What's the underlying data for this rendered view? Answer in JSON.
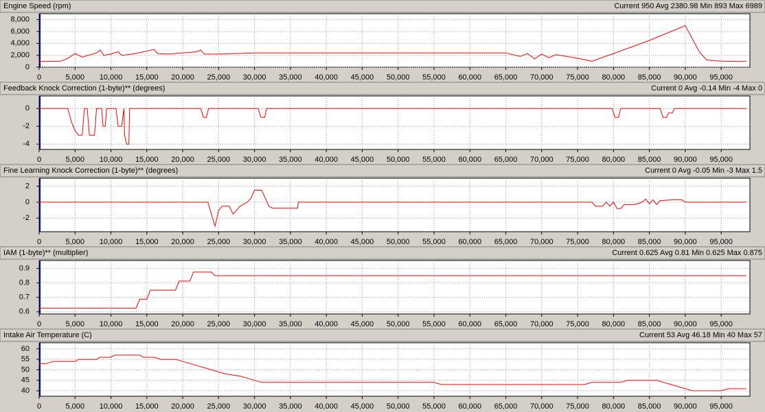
{
  "chart_data": [
    {
      "type": "line",
      "title": "Engine Speed (rpm)",
      "stats": "Current 950 Avg 2380.98 Min 893 Max 6989",
      "color": "#ff0000",
      "grid": true,
      "x": [
        0,
        3000,
        4000,
        5000,
        6000,
        8000,
        8500,
        9000,
        10000,
        11000,
        11500,
        13000,
        15000,
        16000,
        16500,
        18000,
        20000,
        22000,
        22500,
        23000,
        25000,
        30000,
        65000,
        67000,
        68000,
        69000,
        70000,
        71000,
        72000,
        75000,
        77000,
        80000,
        85000,
        90000,
        92000,
        93000,
        95000,
        98000,
        98500
      ],
      "values": [
        950,
        1000,
        1500,
        2300,
        1700,
        2400,
        2900,
        2000,
        2200,
        2600,
        2000,
        2200,
        2700,
        3000,
        2300,
        2200,
        2400,
        2600,
        2900,
        2200,
        2200,
        2400,
        2400,
        1800,
        2300,
        1400,
        2200,
        1600,
        2100,
        1500,
        1000,
        2300,
        4500,
        6989,
        2500,
        1200,
        1000,
        950,
        1000
      ],
      "xlim": [
        0,
        99000
      ],
      "ylim": [
        0,
        9000
      ],
      "yticks": [
        0,
        {
          "value": 2000,
          "label": "2,000"
        },
        {
          "value": 4000,
          "label": "4,000"
        },
        {
          "value": 6000,
          "label": "6,000"
        },
        {
          "value": 8000,
          "label": "8,000"
        }
      ],
      "xticks": [
        0,
        {
          "value": 5000,
          "label": "5,000"
        },
        {
          "value": 10000,
          "label": "10,000"
        },
        {
          "value": 15000,
          "label": "15,000"
        },
        {
          "value": 20000,
          "label": "20,000"
        },
        {
          "value": 25000,
          "label": "25,000"
        },
        {
          "value": 30000,
          "label": "30,000"
        },
        {
          "value": 35000,
          "label": "35,000"
        },
        {
          "value": 40000,
          "label": "40,000"
        },
        {
          "value": 45000,
          "label": "45,000"
        },
        {
          "value": 50000,
          "label": "50,000"
        },
        {
          "value": 55000,
          "label": "55,000"
        },
        {
          "value": 60000,
          "label": "60,000"
        },
        {
          "value": 65000,
          "label": "65,000"
        },
        {
          "value": 70000,
          "label": "70,000"
        },
        {
          "value": 75000,
          "label": "75,000"
        },
        {
          "value": 80000,
          "label": "80,000"
        },
        {
          "value": 85000,
          "label": "85,000"
        },
        {
          "value": 90000,
          "label": "90,000"
        },
        {
          "value": 95000,
          "label": "95,000"
        }
      ]
    },
    {
      "type": "line",
      "title": "Feedback Knock Correction (1-byte)** (degrees)",
      "stats": "Current 0 Avg -0.14 Min -4 Max 0",
      "color": "#ff0000",
      "grid": true,
      "x": [
        0,
        4000,
        4500,
        5000,
        5500,
        6000,
        6300,
        6700,
        7000,
        7700,
        8000,
        8700,
        8900,
        9200,
        9400,
        10700,
        11000,
        11500,
        11800,
        11900,
        12200,
        12500,
        12600,
        22500,
        22900,
        23300,
        23600,
        30500,
        30900,
        31400,
        31700,
        79800,
        80200,
        80700,
        81000,
        86500,
        86900,
        87400,
        87700,
        88200,
        88500,
        98500
      ],
      "values": [
        0,
        0,
        -1.5,
        -2.5,
        -3,
        -3,
        0,
        0,
        -3,
        -3,
        0,
        0,
        -2,
        -2,
        0,
        0,
        -2,
        -2,
        0,
        -3,
        -4,
        -4,
        0,
        0,
        -1,
        -1,
        0,
        0,
        -1,
        -1,
        0,
        0,
        -1,
        -1,
        0,
        0,
        -1,
        -1,
        -0.5,
        -0.5,
        0,
        0
      ],
      "xlim": [
        0,
        99000
      ],
      "ylim": [
        -4.6,
        1.4
      ],
      "yticks": [
        -4,
        -2,
        0
      ],
      "xticks": [
        0,
        {
          "value": 5000,
          "label": "5,000"
        },
        {
          "value": 10000,
          "label": "10,000"
        },
        {
          "value": 15000,
          "label": "15,000"
        },
        {
          "value": 20000,
          "label": "20,000"
        },
        {
          "value": 25000,
          "label": "25,000"
        },
        {
          "value": 30000,
          "label": "30,000"
        },
        {
          "value": 35000,
          "label": "35,000"
        },
        {
          "value": 40000,
          "label": "40,000"
        },
        {
          "value": 45000,
          "label": "45,000"
        },
        {
          "value": 50000,
          "label": "50,000"
        },
        {
          "value": 55000,
          "label": "55,000"
        },
        {
          "value": 60000,
          "label": "60,000"
        },
        {
          "value": 65000,
          "label": "65,000"
        },
        {
          "value": 70000,
          "label": "70,000"
        },
        {
          "value": 75000,
          "label": "75,000"
        },
        {
          "value": 80000,
          "label": "80,000"
        },
        {
          "value": 85000,
          "label": "85,000"
        },
        {
          "value": 90000,
          "label": "90,000"
        },
        {
          "value": 95000,
          "label": "95,000"
        }
      ]
    },
    {
      "type": "line",
      "title": "Fine Learning Knock Correction (1-byte)** (degrees)",
      "stats": "Current 0 Avg -0.05 Min -3 Max 1.5",
      "color": "#ff0000",
      "grid": true,
      "x": [
        0,
        23500,
        24000,
        24500,
        25000,
        25500,
        26500,
        27000,
        27500,
        28000,
        29000,
        29500,
        30000,
        31000,
        31500,
        32000,
        32500,
        36000,
        36100,
        77000,
        77500,
        78500,
        79000,
        79500,
        80000,
        80500,
        81000,
        81500,
        83000,
        84000,
        84500,
        85000,
        85500,
        86000,
        86500,
        88500,
        89500,
        90000,
        98500
      ],
      "values": [
        0,
        0,
        -1.5,
        -3,
        -1,
        -0.5,
        -0.5,
        -1.5,
        -1,
        -0.5,
        0,
        0.5,
        1.5,
        1.5,
        0.5,
        -0.5,
        -0.75,
        -0.75,
        0,
        0,
        -0.5,
        -0.5,
        0,
        -0.5,
        0,
        -0.8,
        -0.8,
        -0.3,
        -0.3,
        0,
        0.4,
        -0.2,
        0.3,
        -0.3,
        0.2,
        0.3,
        0.3,
        0,
        0
      ],
      "xlim": [
        0,
        99000
      ],
      "ylim": [
        -3.7,
        3.0
      ],
      "yticks": [
        -2,
        0,
        2
      ],
      "xticks": [
        0,
        {
          "value": 5000,
          "label": "5,000"
        },
        {
          "value": 10000,
          "label": "10,000"
        },
        {
          "value": 15000,
          "label": "15,000"
        },
        {
          "value": 20000,
          "label": "20,000"
        },
        {
          "value": 25000,
          "label": "25,000"
        },
        {
          "value": 30000,
          "label": "30,000"
        },
        {
          "value": 35000,
          "label": "35,000"
        },
        {
          "value": 40000,
          "label": "40,000"
        },
        {
          "value": 45000,
          "label": "45,000"
        },
        {
          "value": 50000,
          "label": "50,000"
        },
        {
          "value": 55000,
          "label": "55,000"
        },
        {
          "value": 60000,
          "label": "60,000"
        },
        {
          "value": 65000,
          "label": "65,000"
        },
        {
          "value": 70000,
          "label": "70,000"
        },
        {
          "value": 75000,
          "label": "75,000"
        },
        {
          "value": 80000,
          "label": "80,000"
        },
        {
          "value": 85000,
          "label": "85,000"
        },
        {
          "value": 90000,
          "label": "90,000"
        },
        {
          "value": 95000,
          "label": "95,000"
        }
      ]
    },
    {
      "type": "line",
      "title": "IAM (1-byte)** (multiplier)",
      "stats": "Current 0.625 Avg 0.81 Min 0.625 Max 0.875",
      "color": "#ff0000",
      "grid": true,
      "x": [
        0,
        13500,
        14000,
        15000,
        15500,
        19000,
        19500,
        21000,
        21500,
        24000,
        24500,
        98500
      ],
      "values": [
        0.625,
        0.625,
        0.6875,
        0.6875,
        0.75,
        0.75,
        0.8125,
        0.8125,
        0.875,
        0.875,
        0.85,
        0.85
      ],
      "xlim": [
        0,
        99000
      ],
      "ylim": [
        0.585,
        0.955
      ],
      "yticks": [
        0.6,
        0.7,
        0.8,
        0.9
      ],
      "xticks": [
        0,
        {
          "value": 5000,
          "label": "5,000"
        },
        {
          "value": 10000,
          "label": "10,000"
        },
        {
          "value": 15000,
          "label": "15,000"
        },
        {
          "value": 20000,
          "label": "20,000"
        },
        {
          "value": 25000,
          "label": "25,000"
        },
        {
          "value": 30000,
          "label": "30,000"
        },
        {
          "value": 35000,
          "label": "35,000"
        },
        {
          "value": 40000,
          "label": "40,000"
        },
        {
          "value": 45000,
          "label": "45,000"
        },
        {
          "value": 50000,
          "label": "50,000"
        },
        {
          "value": 55000,
          "label": "55,000"
        },
        {
          "value": 60000,
          "label": "60,000"
        },
        {
          "value": 65000,
          "label": "65,000"
        },
        {
          "value": 70000,
          "label": "70,000"
        },
        {
          "value": 75000,
          "label": "75,000"
        },
        {
          "value": 80000,
          "label": "80,000"
        },
        {
          "value": 85000,
          "label": "85,000"
        },
        {
          "value": 90000,
          "label": "90,000"
        },
        {
          "value": 95000,
          "label": "95,000"
        }
      ]
    },
    {
      "type": "line",
      "title": "Intake Air Temperature (C)",
      "stats": "Current 53 Avg 46.18 Min 40 Max 57",
      "color": "#ff0000",
      "grid": true,
      "x": [
        0,
        1000,
        2000,
        5000,
        5500,
        8000,
        8500,
        10000,
        10500,
        14000,
        14500,
        16000,
        17000,
        19000,
        20000,
        21000,
        22000,
        23000,
        24000,
        25000,
        26000,
        28000,
        29000,
        30000,
        31000,
        55000,
        56000,
        76000,
        77000,
        81000,
        82000,
        86000,
        87000,
        88000,
        89000,
        90000,
        91000,
        95000,
        96000,
        98500
      ],
      "values": [
        53,
        53,
        54,
        54,
        55,
        55,
        56,
        56,
        57,
        57,
        56,
        56,
        55,
        55,
        54,
        53,
        52,
        51,
        50,
        49,
        48,
        47,
        46,
        45,
        44,
        44,
        43,
        43,
        44,
        44,
        45,
        45,
        44,
        43,
        42,
        41,
        40,
        40,
        41,
        41
      ],
      "xlim": [
        0,
        99000
      ],
      "ylim": [
        37.4,
        62.9
      ],
      "yticks": [
        40,
        45,
        50,
        55,
        60
      ],
      "xticks": [
        0,
        {
          "value": 5000,
          "label": "5,000"
        },
        {
          "value": 10000,
          "label": "10,000"
        },
        {
          "value": 15000,
          "label": "15,000"
        },
        {
          "value": 20000,
          "label": "20,000"
        },
        {
          "value": 25000,
          "label": "25,000"
        },
        {
          "value": 30000,
          "label": "30,000"
        },
        {
          "value": 35000,
          "label": "35,000"
        },
        {
          "value": 40000,
          "label": "40,000"
        },
        {
          "value": 45000,
          "label": "45,000"
        },
        {
          "value": 50000,
          "label": "50,000"
        },
        {
          "value": 55000,
          "label": "55,000"
        },
        {
          "value": 60000,
          "label": "60,000"
        },
        {
          "value": 65000,
          "label": "65,000"
        },
        {
          "value": 70000,
          "label": "70,000"
        },
        {
          "value": 75000,
          "label": "75,000"
        },
        {
          "value": 80000,
          "label": "80,000"
        },
        {
          "value": 85000,
          "label": "85,000"
        },
        {
          "value": 90000,
          "label": "90,000"
        },
        {
          "value": 95000,
          "label": "95,000"
        }
      ]
    }
  ]
}
